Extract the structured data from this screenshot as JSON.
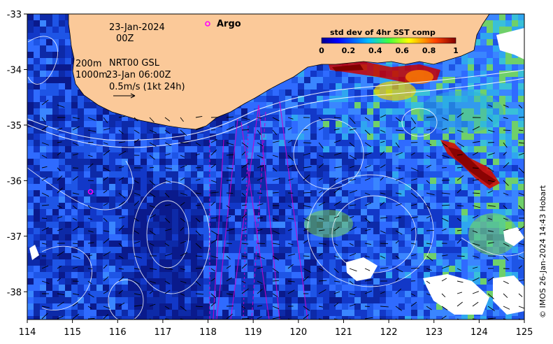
{
  "map": {
    "date_text": "23-Jan-2024",
    "hour_text": "00Z",
    "depth_200": "200m",
    "depth_1000": "1000m",
    "product_text": "NRT00 GSL",
    "valid_time_text": "23-Jan 06:00Z",
    "vector_scale_text": "0.5m/s (1kt 24h)",
    "argo_label": "Argo",
    "credit_text": "© IMOS 26-Jan-2024 14:43 Hobart",
    "lon_ticks": [
      "114",
      "115",
      "116",
      "117",
      "118",
      "119",
      "120",
      "121",
      "122",
      "123",
      "124",
      "125"
    ],
    "lat_ticks": [
      "-33",
      "-34",
      "-35",
      "-36",
      "-37",
      "-38"
    ],
    "lon_range": [
      114,
      125
    ],
    "lat_range": [
      -38.5,
      -33
    ],
    "argo_float": {
      "lon": 115.4,
      "lat": -36.2
    }
  },
  "colorbar": {
    "title": "std dev of 4hr SST comp",
    "ticks": [
      "0",
      "0.2",
      "0.4",
      "0.6",
      "0.8",
      "1"
    ],
    "range": [
      0,
      1
    ]
  },
  "colors": {
    "land": "#fbc999",
    "ocean_low": "#0a1f9c",
    "ocean_mid": "#2f6bff",
    "high": "#b50000",
    "argo": "#ff00ff",
    "contour": "#ffffff",
    "track": "#cc00cc"
  }
}
